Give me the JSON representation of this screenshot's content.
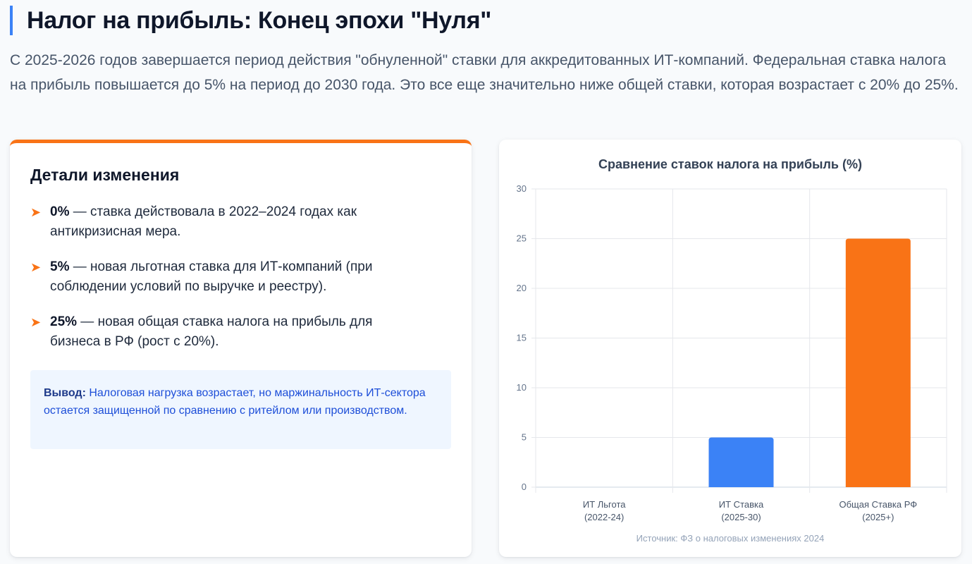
{
  "header": {
    "title": "Налог на прибыль: Конец эпохи \"Нуля\"",
    "lead": "С 2025-2026 годов завершается период действия \"обнуленной\" ставки для аккредитованных ИТ-компаний. Федеральная ставка налога на прибыль повышается до 5% на период до 2030 года. Это все еще значительно ниже общей ставки, которая возрастает с 20% до 25%."
  },
  "details": {
    "title": "Детали изменения",
    "items": [
      {
        "bold": "0%",
        "text": " — ставка действовала в 2022–2024 годах как антикризисная мера."
      },
      {
        "bold": "5%",
        "text": " — новая льготная ставка для ИТ-компаний (при соблюдении условий по выручке и реестру)."
      },
      {
        "bold": "25%",
        "text": " — новая общая ставка налога на прибыль для бизнеса в РФ (рост с 20%)."
      }
    ],
    "conclusion_label": "Вывод:",
    "conclusion_text": " Налоговая нагрузка возрастает, но маржинальность ИТ-сектора остается защищенной по сравнению с ритейлом или производством."
  },
  "colors": {
    "accent": "#f97316",
    "blue": "#3b82f6"
  },
  "chart_data": {
    "type": "bar",
    "title": "Сравнение ставок налога на прибыль (%)",
    "categories": [
      [
        "ИТ Льгота",
        "(2022-24)"
      ],
      [
        "ИТ Ставка",
        "(2025-30)"
      ],
      [
        "Общая Ставка РФ",
        "(2025+)"
      ]
    ],
    "values": [
      0,
      5,
      25
    ],
    "bar_colors": [
      "#3b82f6",
      "#3b82f6",
      "#f97316"
    ],
    "ylim": [
      0,
      30
    ],
    "yticks": [
      0,
      5,
      10,
      15,
      20,
      25,
      30
    ],
    "grid": true,
    "legend": "none",
    "source": "Источник: ФЗ о налоговых изменениях 2024"
  }
}
